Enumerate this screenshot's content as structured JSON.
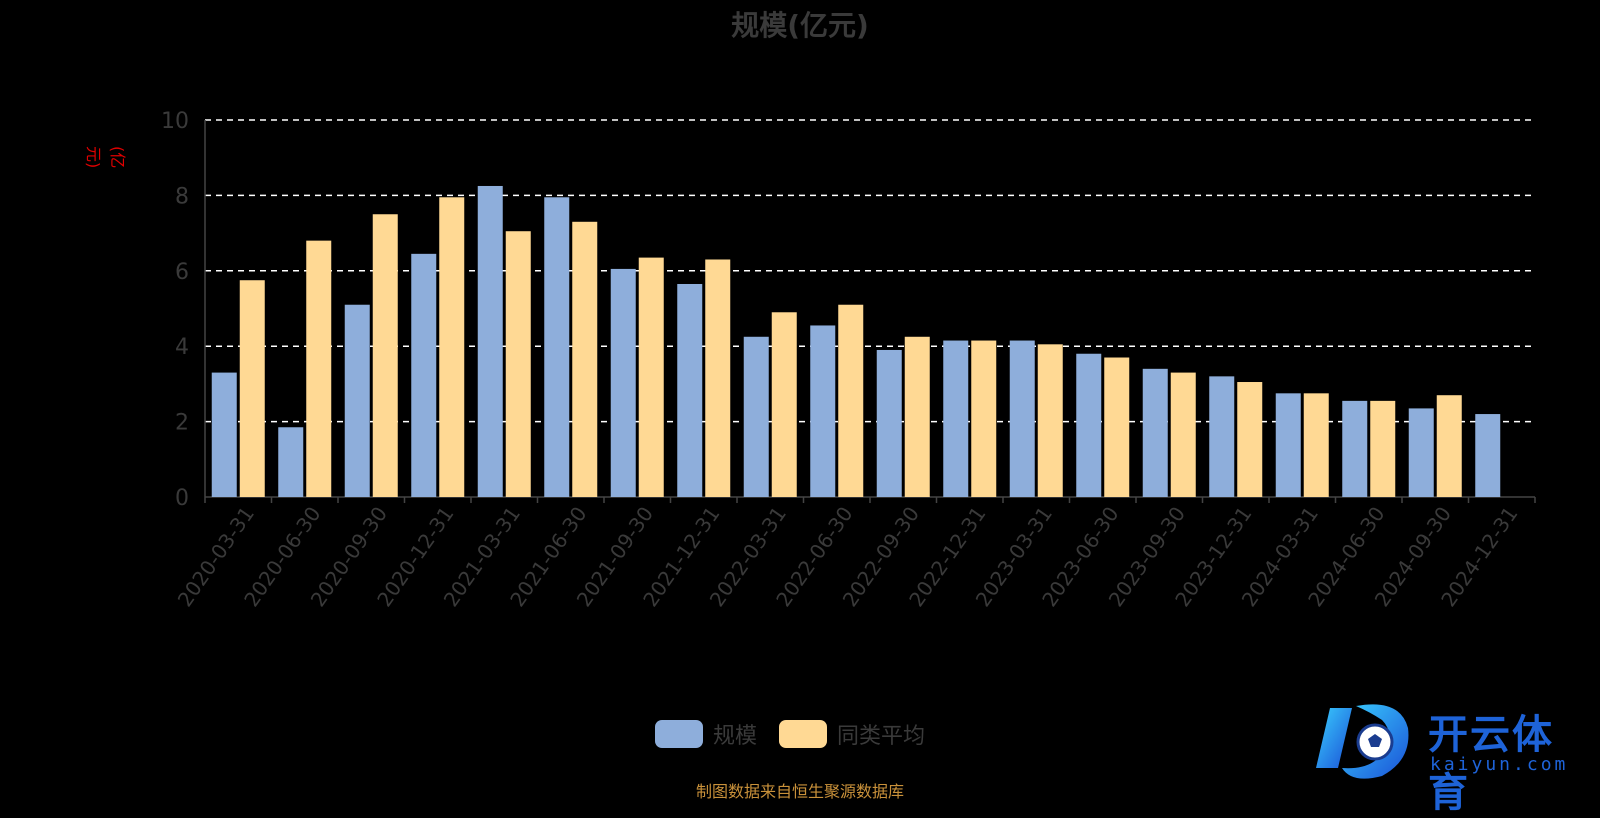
{
  "chart_data": {
    "type": "bar",
    "title": "规模(亿元)",
    "ylabel": "(亿元)",
    "ylim": [
      0,
      10
    ],
    "yticks": [
      0,
      2,
      4,
      6,
      8,
      10
    ],
    "grid": true,
    "legend_position": "bottom",
    "categories": [
      "2020-03-31",
      "2020-06-30",
      "2020-09-30",
      "2020-12-31",
      "2021-03-31",
      "2021-06-30",
      "2021-09-30",
      "2021-12-31",
      "2022-03-31",
      "2022-06-30",
      "2022-09-30",
      "2022-12-31",
      "2023-03-31",
      "2023-06-30",
      "2023-09-30",
      "2023-12-31",
      "2024-03-31",
      "2024-06-30",
      "2024-09-30",
      "2024-12-31"
    ],
    "series": [
      {
        "name": "规模",
        "color": "#8eaedb",
        "values": [
          3.3,
          1.85,
          5.1,
          6.45,
          8.25,
          7.95,
          6.05,
          5.65,
          4.25,
          4.55,
          3.9,
          4.15,
          4.15,
          3.8,
          3.4,
          3.2,
          2.75,
          2.55,
          2.35,
          2.2
        ]
      },
      {
        "name": "同类平均",
        "color": "#ffd994",
        "values": [
          5.75,
          6.8,
          7.5,
          7.95,
          7.05,
          7.3,
          6.35,
          6.3,
          4.9,
          5.1,
          4.25,
          4.15,
          4.05,
          3.7,
          3.3,
          3.05,
          2.75,
          2.55,
          2.7,
          null
        ]
      }
    ]
  },
  "legend": {
    "items": [
      {
        "label": "规模",
        "color": "#8eaedb"
      },
      {
        "label": "同类平均",
        "color": "#ffd994"
      }
    ]
  },
  "source": "制图数据来自恒生聚源数据库",
  "watermark": {
    "text": "开云体育",
    "sub": "kaiyun.com"
  }
}
